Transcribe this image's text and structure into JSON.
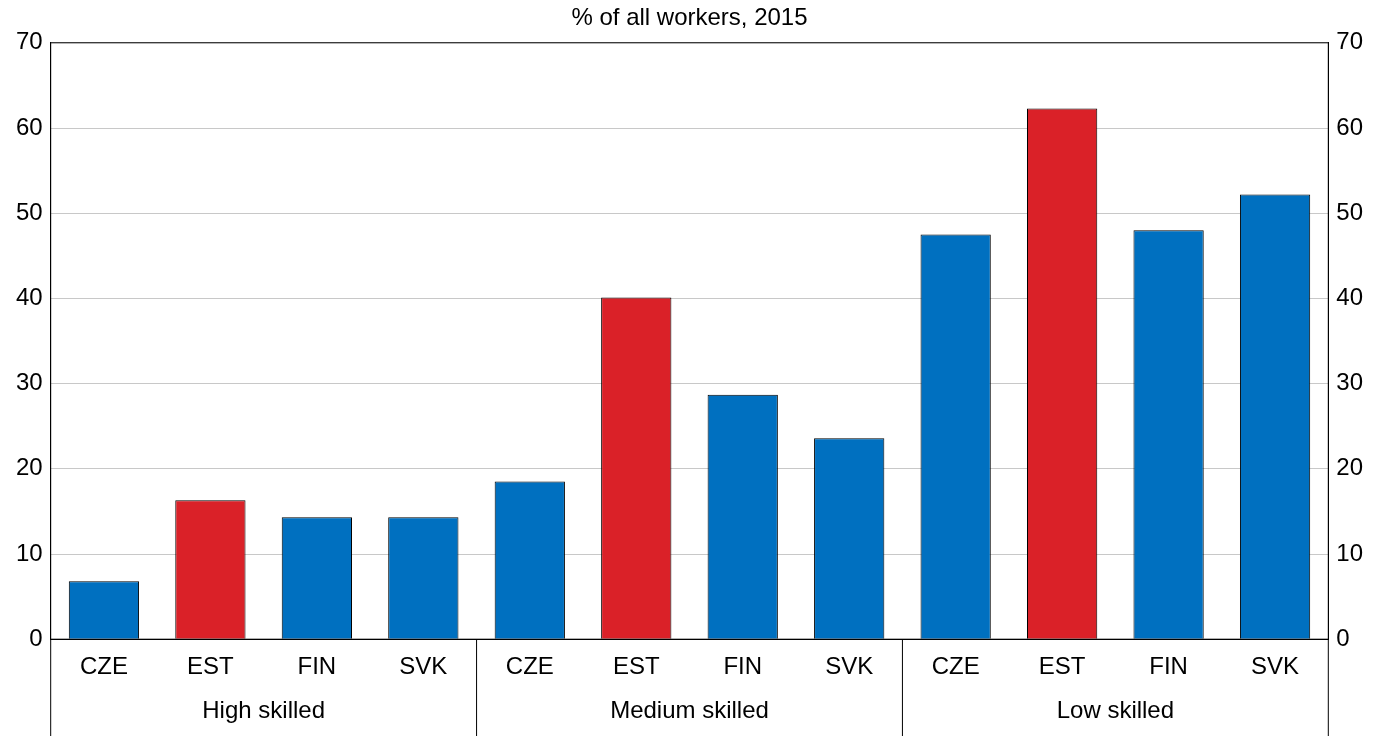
{
  "chart_data": {
    "type": "bar",
    "title": "% of all workers, 2015",
    "categories": [
      "CZE",
      "EST",
      "FIN",
      "SVK",
      "CZE",
      "EST",
      "FIN",
      "SVK",
      "CZE",
      "EST",
      "FIN",
      "SVK"
    ],
    "values": [
      6.8,
      16.3,
      14.3,
      14.3,
      18.5,
      40.1,
      28.7,
      23.6,
      47.5,
      62.3,
      48.0,
      52.2
    ],
    "colors": [
      "#0070c0",
      "#da2128",
      "#0070c0",
      "#0070c0",
      "#0070c0",
      "#da2128",
      "#0070c0",
      "#0070c0",
      "#0070c0",
      "#da2128",
      "#0070c0",
      "#0070c0"
    ],
    "annotations": [
      "High skilled",
      "Medium skilled",
      "Low skilled"
    ],
    "ylim": [
      0,
      70
    ],
    "yticks": [
      0,
      10,
      20,
      30,
      40,
      50,
      60,
      70
    ],
    "y2lim": [
      0,
      70
    ],
    "y2ticks": [
      0,
      10,
      20,
      30,
      40,
      50,
      60,
      70
    ],
    "grid": "y",
    "legend": false
  }
}
